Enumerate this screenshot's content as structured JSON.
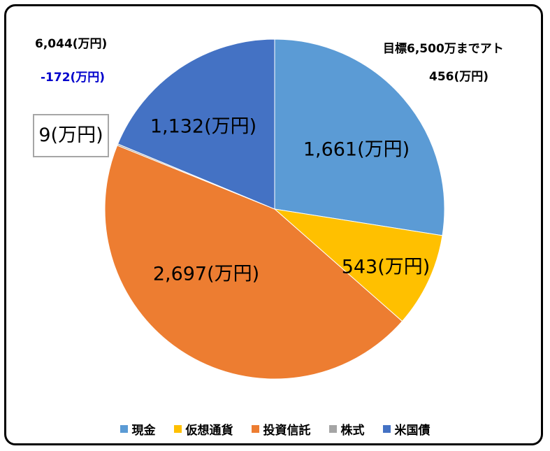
{
  "chart_data": {
    "type": "pie",
    "unit": "(万円)",
    "slices": [
      {
        "name": "現金",
        "value": 1661,
        "label": "1,661(万円)",
        "color": "#5b9bd5"
      },
      {
        "name": "仮想通貨",
        "value": 543,
        "label": "543(万円)",
        "color": "#ffc000"
      },
      {
        "name": "投資信託",
        "value": 2697,
        "label": "2,697(万円)",
        "color": "#ed7d31"
      },
      {
        "name": "株式",
        "value": 9,
        "label": "9(万円)",
        "color": "#a5a5a5"
      },
      {
        "name": "米国債",
        "value": 1132,
        "label": "1,132(万円)",
        "color": "#4472c4"
      }
    ],
    "legend_position": "bottom"
  },
  "annotations": {
    "total": "6,044(万円)",
    "change": "-172(万円)",
    "goal": "目標6,500万までアト",
    "remaining": "456(万円)"
  }
}
